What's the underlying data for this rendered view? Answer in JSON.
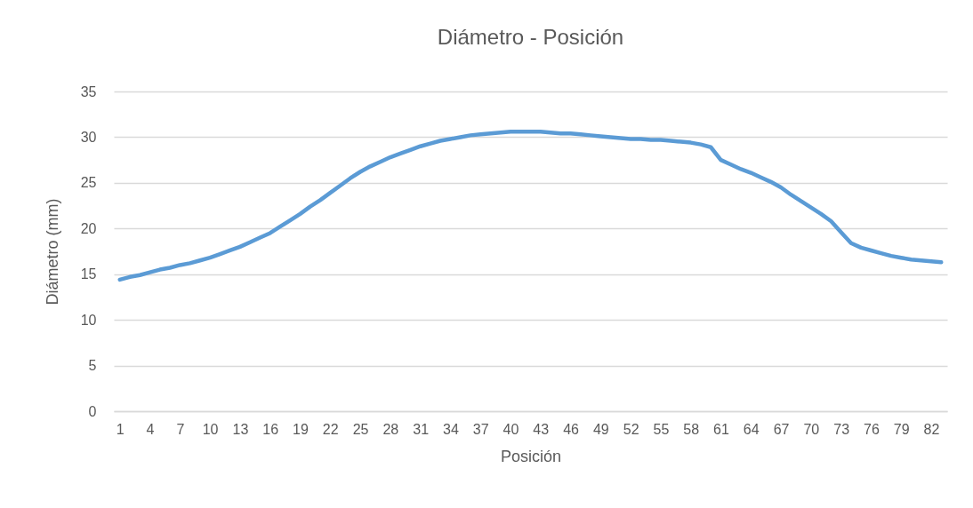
{
  "chart_data": {
    "type": "line",
    "title": "Diámetro - Posición",
    "xlabel": "Posición",
    "ylabel": "Diámetro (mm)",
    "categories": [
      "1",
      null,
      null,
      "4",
      null,
      null,
      "7",
      null,
      null,
      "10",
      null,
      null,
      "13",
      null,
      null,
      "16",
      null,
      null,
      "19",
      null,
      null,
      "22",
      null,
      null,
      "25",
      null,
      null,
      "28",
      null,
      null,
      "31",
      null,
      null,
      "34",
      null,
      null,
      "37",
      null,
      null,
      "40",
      null,
      null,
      "43",
      null,
      null,
      "46",
      null,
      null,
      "49",
      null,
      null,
      "52",
      null,
      null,
      "55",
      null,
      null,
      "58",
      null,
      null,
      "61",
      null,
      null,
      "64",
      null,
      null,
      "67",
      null,
      null,
      "70",
      null,
      null,
      "73",
      null,
      null,
      "76",
      null,
      null,
      "79",
      null,
      null,
      "82",
      null
    ],
    "series": [
      {
        "color": "#5b9bd5",
        "values": [
          14.4,
          14.7,
          14.9,
          15.2,
          15.5,
          15.7,
          16.0,
          16.2,
          16.5,
          16.8,
          17.2,
          17.6,
          18.0,
          18.5,
          19.0,
          19.5,
          20.2,
          20.9,
          21.6,
          22.4,
          23.1,
          23.9,
          24.7,
          25.5,
          26.2,
          26.8,
          27.3,
          27.8,
          28.2,
          28.6,
          29.0,
          29.3,
          29.6,
          29.8,
          30.0,
          30.2,
          30.3,
          30.4,
          30.5,
          30.6,
          30.6,
          30.6,
          30.6,
          30.5,
          30.4,
          30.4,
          30.3,
          30.2,
          30.1,
          30.0,
          29.9,
          29.8,
          29.8,
          29.7,
          29.7,
          29.6,
          29.5,
          29.4,
          29.2,
          28.9,
          27.5,
          27.0,
          26.5,
          26.1,
          25.6,
          25.1,
          24.5,
          23.7,
          23.0,
          22.3,
          21.6,
          20.8,
          19.6,
          18.4,
          17.9,
          17.6,
          17.3,
          17.0,
          16.8,
          16.6,
          16.5,
          16.4,
          16.3
        ]
      }
    ],
    "ylim": [
      0,
      35
    ],
    "yticks": [
      0,
      5,
      10,
      15,
      20,
      25,
      30,
      35
    ],
    "grid": "y",
    "marker": "none",
    "line_style": "solid",
    "legend": false
  }
}
